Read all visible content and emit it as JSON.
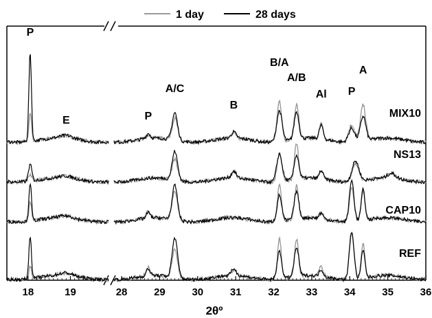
{
  "chart_data": {
    "type": "line",
    "xlabel": "2θº",
    "legend": {
      "placement": "top-center",
      "entries": [
        {
          "label": "1 day",
          "color": "#999999"
        },
        {
          "label": "28 days",
          "color": "#000000"
        }
      ]
    },
    "x_axis": {
      "broken": true,
      "segments": [
        {
          "range": [
            17.5,
            19.9
          ],
          "ticks": [
            18,
            19
          ]
        },
        {
          "range": [
            27.8,
            36.0
          ],
          "ticks": [
            28,
            29,
            30,
            31,
            32,
            33,
            34,
            35,
            36
          ]
        }
      ]
    },
    "samples": [
      "MIX10",
      "NS13",
      "CAP10",
      "REF"
    ],
    "series": [
      {
        "name": "1 day",
        "color": "#999999"
      },
      {
        "name": "28 days",
        "color": "#000000"
      }
    ],
    "peak_labels": [
      {
        "text": "P",
        "x": 18.05,
        "segment": 0
      },
      {
        "text": "E",
        "x": 18.9,
        "segment": 0
      },
      {
        "text": "P",
        "x": 28.7,
        "segment": 1
      },
      {
        "text": "A/C",
        "x": 29.4,
        "segment": 1
      },
      {
        "text": "B",
        "x": 30.95,
        "segment": 1
      },
      {
        "text": "B/A",
        "x": 32.15,
        "segment": 1
      },
      {
        "text": "A/B",
        "x": 32.6,
        "segment": 1
      },
      {
        "text": "Al",
        "x": 33.25,
        "segment": 1
      },
      {
        "text": "P",
        "x": 34.05,
        "segment": 1
      },
      {
        "text": "A",
        "x": 34.35,
        "segment": 1
      }
    ]
  }
}
